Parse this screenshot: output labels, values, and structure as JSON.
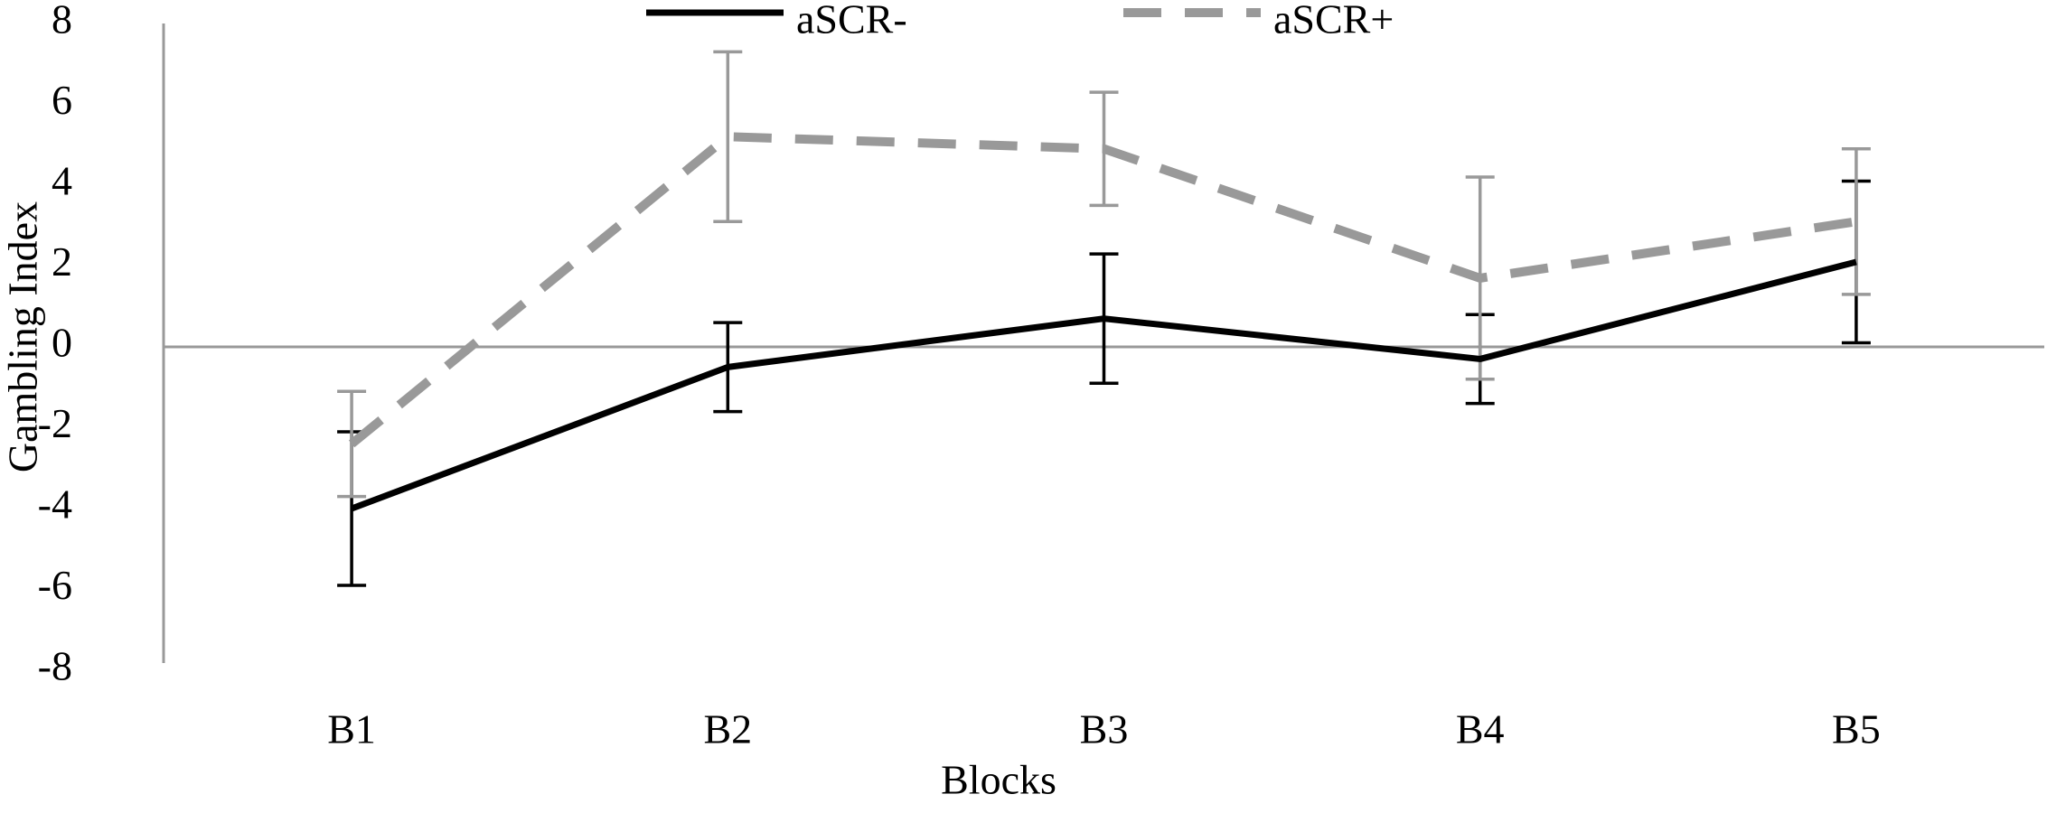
{
  "chart_data": {
    "type": "line",
    "x_label": "Blocks",
    "y_label": "Gambling Index",
    "categories": [
      "B1",
      "B2",
      "B3",
      "B4",
      "B5"
    ],
    "series": [
      {
        "name": "aSCR-",
        "color": "#000000",
        "dash": false,
        "values": [
          -4.0,
          -0.5,
          0.7,
          -0.3,
          2.1
        ],
        "errors": [
          1.9,
          1.1,
          1.6,
          1.1,
          2.0
        ]
      },
      {
        "name": "aSCR+",
        "color": "#999999",
        "dash": true,
        "values": [
          -2.4,
          5.2,
          4.9,
          1.7,
          3.1
        ],
        "errors": [
          1.3,
          2.1,
          1.4,
          2.5,
          1.8
        ]
      }
    ],
    "ylim": [
      -8,
      8
    ],
    "yticks": [
      -8,
      -6,
      -4,
      -2,
      0,
      2,
      4,
      6,
      8
    ],
    "legend": "top",
    "grid": false
  }
}
